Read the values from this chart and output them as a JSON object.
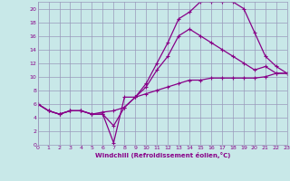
{
  "xlabel": "Windchill (Refroidissement éolien,°C)",
  "bg_color": "#c8e8e8",
  "grid_color": "#9999bb",
  "line_color": "#880088",
  "xlim": [
    0,
    23
  ],
  "ylim": [
    0,
    21
  ],
  "xticks": [
    0,
    1,
    2,
    3,
    4,
    5,
    6,
    7,
    8,
    9,
    10,
    11,
    12,
    13,
    14,
    15,
    16,
    17,
    18,
    19,
    20,
    21,
    22,
    23
  ],
  "yticks": [
    0,
    2,
    4,
    6,
    8,
    10,
    12,
    14,
    16,
    18,
    20
  ],
  "line1_x": [
    0,
    1,
    2,
    3,
    4,
    5,
    6,
    7,
    8,
    9,
    10,
    11,
    12,
    13,
    14,
    15,
    16,
    17,
    18,
    19,
    20,
    21,
    22,
    23
  ],
  "line1_y": [
    6,
    5,
    4.5,
    5,
    5,
    4.5,
    4.5,
    0.3,
    7,
    7,
    7.5,
    8,
    8.5,
    9,
    9.5,
    9.5,
    9.8,
    9.8,
    9.8,
    9.8,
    9.8,
    10,
    10.5,
    10.5
  ],
  "line2_x": [
    0,
    1,
    2,
    3,
    4,
    5,
    6,
    7,
    8,
    9,
    10,
    11,
    12,
    13,
    14,
    15,
    16,
    17,
    18,
    19,
    20,
    21,
    22,
    23
  ],
  "line2_y": [
    6,
    5,
    4.5,
    5,
    5,
    4.5,
    4.5,
    2.8,
    5.5,
    7,
    9,
    12,
    15,
    18.5,
    19.5,
    21,
    21,
    21,
    21,
    20,
    16.5,
    13,
    11.5,
    10.5
  ],
  "line3_x": [
    0,
    1,
    2,
    3,
    4,
    5,
    6,
    7,
    8,
    9,
    10,
    11,
    12,
    13,
    14,
    15,
    16,
    17,
    18,
    19,
    20,
    21,
    22,
    23
  ],
  "line3_y": [
    6,
    5,
    4.5,
    5,
    5,
    4.5,
    4.8,
    5,
    5.5,
    7,
    8.5,
    11,
    13,
    16,
    17,
    16,
    15,
    14,
    13,
    12,
    11,
    11.5,
    10.5,
    10.5
  ]
}
